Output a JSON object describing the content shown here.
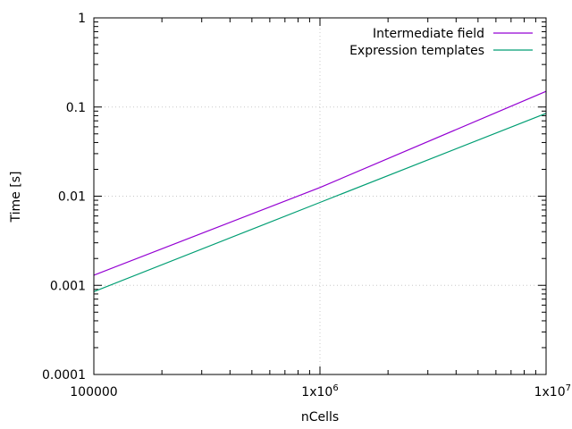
{
  "chart_data": {
    "type": "line",
    "xlabel": "nCells",
    "ylabel": "Time [s]",
    "xscale": "log",
    "yscale": "log",
    "xlim": [
      100000,
      10000000
    ],
    "ylim": [
      0.0001,
      1
    ],
    "grid": true,
    "legend_position": "top-right",
    "x_tick_labels": [
      {
        "value": 100000,
        "mantissa": "100000",
        "exp": ""
      },
      {
        "value": 1000000,
        "mantissa": "1x10",
        "exp": "6"
      },
      {
        "value": 10000000,
        "mantissa": "1x10",
        "exp": "7"
      }
    ],
    "y_tick_labels": [
      {
        "value": 0.0001,
        "text": "0.0001"
      },
      {
        "value": 0.001,
        "text": "0.001"
      },
      {
        "value": 0.01,
        "text": "0.01"
      },
      {
        "value": 0.1,
        "text": "0.1"
      },
      {
        "value": 1,
        "text": "1"
      }
    ],
    "series": [
      {
        "name": "Intermediate field",
        "color": "#9400d3",
        "x": [
          100000,
          1000000,
          10000000
        ],
        "y": [
          0.0013,
          0.0125,
          0.15
        ]
      },
      {
        "name": "Expression templates",
        "color": "#009e73",
        "x": [
          100000,
          1000000,
          10000000
        ],
        "y": [
          0.00085,
          0.0085,
          0.085
        ]
      }
    ]
  }
}
